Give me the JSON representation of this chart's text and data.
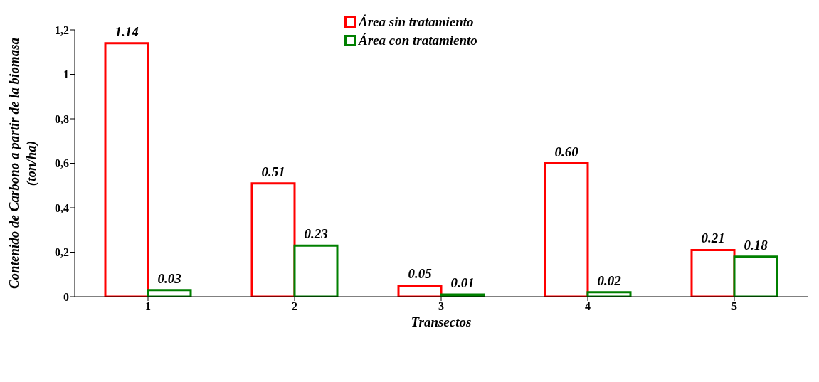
{
  "chart_data": {
    "type": "bar",
    "xlabel": "Transectos",
    "ylabel": "Contenido de Carbono a partir de la biomasa\n(ton/ha)",
    "categories": [
      "1",
      "2",
      "3",
      "4",
      "5"
    ],
    "series": [
      {
        "name": "Área sin tratamiento",
        "color": "#ff0000",
        "values": [
          1.14,
          0.51,
          0.05,
          0.6,
          0.21
        ],
        "value_labels": [
          "1.14",
          "0.51",
          "0.05",
          "0.60",
          "0.21"
        ]
      },
      {
        "name": "Área con tratamiento",
        "color": "#008000",
        "values": [
          0.03,
          0.23,
          0.01,
          0.02,
          0.18
        ],
        "value_labels": [
          "0.03",
          "0.23",
          "0.01",
          "0.02",
          "0.18"
        ]
      }
    ],
    "ylim": [
      0,
      1.2
    ],
    "yticks": [
      0,
      {
        "value": 0.2,
        "label": "0,2"
      },
      {
        "value": 0.4,
        "label": "0,4"
      },
      {
        "value": 0.6,
        "label": "0,6"
      },
      {
        "value": 0.8,
        "label": "0,8"
      },
      1,
      {
        "value": 1.2,
        "label": "1,2"
      }
    ],
    "grid": false,
    "legend": "top"
  }
}
